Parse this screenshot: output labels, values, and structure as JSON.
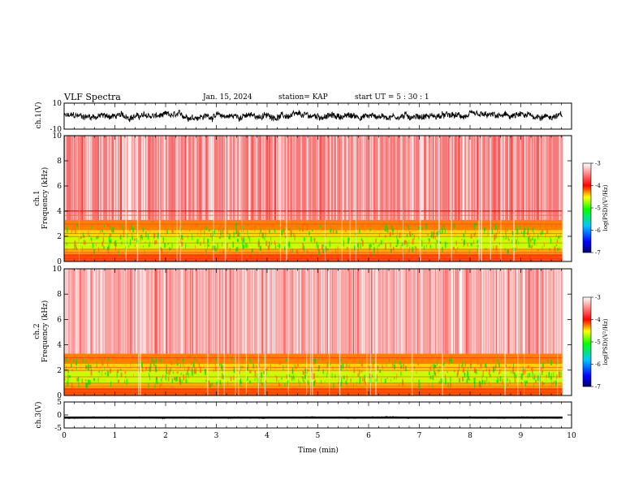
{
  "header": {
    "title": "VLF Spectra",
    "date": "Jan. 15, 2024",
    "station": "station= KAP",
    "start": "start UT = 5 : 30 : 1"
  },
  "chart_data": [
    {
      "type": "line",
      "name": "ch1-waveform",
      "ylabel": "ch.1(V)",
      "ylim": [
        -10,
        10
      ],
      "yticks": [
        "10",
        "-10"
      ],
      "xlim": [
        0,
        10
      ],
      "data_end_min": 9.82,
      "color": "#000000"
    },
    {
      "type": "heatmap",
      "name": "ch1-spectrogram",
      "ylabel_line1": "ch.1",
      "ylabel_line2": "Frequency (kHz)",
      "ylim": [
        0,
        10
      ],
      "yticks": [
        "0",
        "2",
        "4",
        "6",
        "8",
        "10"
      ],
      "xlim": [
        0,
        10
      ],
      "data_end_min": 9.82,
      "colorbar": {
        "label": "log(PSD)(V²/Hz)",
        "range": [
          -7,
          -3
        ],
        "ticks": [
          "-3",
          "-4",
          "-5",
          "-6",
          "-7"
        ],
        "colors": [
          "#000066",
          "#0000ff",
          "#00c8ff",
          "#00ff00",
          "#ffff00",
          "#ff0000",
          "#ffffff"
        ]
      }
    },
    {
      "type": "heatmap",
      "name": "ch2-spectrogram",
      "ylabel_line1": "ch.2",
      "ylabel_line2": "Frequency (kHz)",
      "ylim": [
        0,
        10
      ],
      "yticks": [
        "0",
        "2",
        "4",
        "6",
        "8",
        "10"
      ],
      "xlim": [
        0,
        10
      ],
      "data_end_min": 9.82,
      "colorbar": {
        "label": "log(PSD)(V²/Hz)",
        "range": [
          -7,
          -3
        ],
        "ticks": [
          "-3",
          "-4",
          "-5",
          "-6",
          "-7"
        ],
        "colors": [
          "#000066",
          "#0000ff",
          "#00c8ff",
          "#00ff00",
          "#ffff00",
          "#ff0000",
          "#ffffff"
        ]
      }
    },
    {
      "type": "line",
      "name": "ch3-waveform",
      "ylabel": "ch.3(V)",
      "ylim": [
        -5,
        5
      ],
      "yticks": [
        "5",
        "0",
        "-5"
      ],
      "xlim": [
        0,
        10
      ],
      "data_end_min": 9.82,
      "color": "#000000",
      "xlabel": "Time (min)",
      "xticks": [
        "0",
        "1",
        "2",
        "3",
        "4",
        "5",
        "6",
        "7",
        "8",
        "9",
        "10"
      ]
    }
  ]
}
